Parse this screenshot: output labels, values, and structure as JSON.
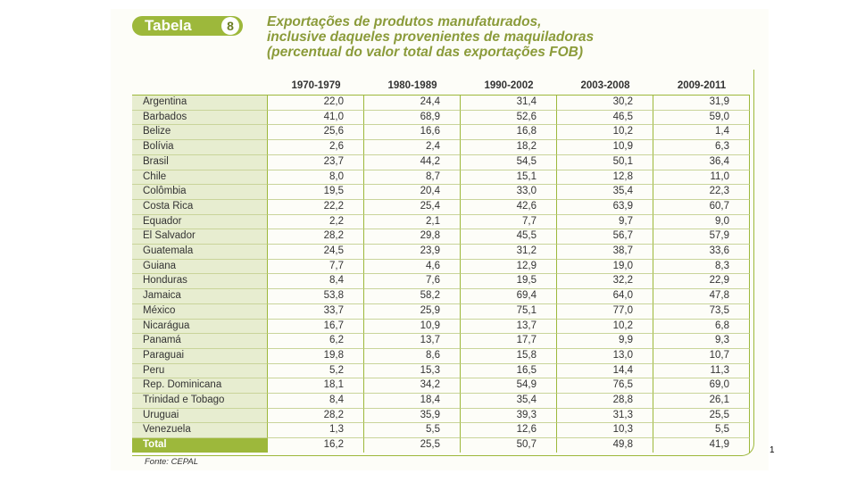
{
  "badge": {
    "label": "Tabela",
    "number": "8"
  },
  "title": {
    "line1": "Exportações de produtos manufaturados,",
    "line2": "inclusive daqueles provenientes de maquiladoras",
    "line3": "(percentual  do valor total das exportações FOB)"
  },
  "table": {
    "headers": [
      "",
      "1970-1979",
      "1980-1989",
      "1990-2002",
      "2003-2008",
      "2009-2011"
    ],
    "rows": [
      [
        "Argentina",
        "22,0",
        "24,4",
        "31,4",
        "30,2",
        "31,9"
      ],
      [
        "Barbados",
        "41,0",
        "68,9",
        "52,6",
        "46,5",
        "59,0"
      ],
      [
        "Belize",
        "25,6",
        "16,6",
        "16,8",
        "10,2",
        "1,4"
      ],
      [
        "Bolívia",
        "2,6",
        "2,4",
        "18,2",
        "10,9",
        "6,3"
      ],
      [
        "Brasil",
        "23,7",
        "44,2",
        "54,5",
        "50,1",
        "36,4"
      ],
      [
        "Chile",
        "8,0",
        "8,7",
        "15,1",
        "12,8",
        "11,0"
      ],
      [
        "Colômbia",
        "19,5",
        "20,4",
        "33,0",
        "35,4",
        "22,3"
      ],
      [
        "Costa Rica",
        "22,2",
        "25,4",
        "42,6",
        "63,9",
        "60,7"
      ],
      [
        "Equador",
        "2,2",
        "2,1",
        "7,7",
        "9,7",
        "9,0"
      ],
      [
        "El Salvador",
        "28,2",
        "29,8",
        "45,5",
        "56,7",
        "57,9"
      ],
      [
        "Guatemala",
        "24,5",
        "23,9",
        "31,2",
        "38,7",
        "33,6"
      ],
      [
        "Guiana",
        "7,7",
        "4,6",
        "12,9",
        "19,0",
        "8,3"
      ],
      [
        "Honduras",
        "8,4",
        "7,6",
        "19,5",
        "32,2",
        "22,9"
      ],
      [
        "Jamaica",
        "53,8",
        "58,2",
        "69,4",
        "64,0",
        "47,8"
      ],
      [
        "México",
        "33,7",
        "25,9",
        "75,1",
        "77,0",
        "73,5"
      ],
      [
        "Nicarágua",
        "16,7",
        "10,9",
        "13,7",
        "10,2",
        "6,8"
      ],
      [
        "Panamá",
        "6,2",
        "13,7",
        "17,7",
        "9,9",
        "9,3"
      ],
      [
        "Paraguai",
        "19,8",
        "8,6",
        "15,8",
        "13,0",
        "10,7"
      ],
      [
        "Peru",
        "5,2",
        "15,3",
        "16,5",
        "14,4",
        "11,3"
      ],
      [
        "Rep. Dominicana",
        "18,1",
        "34,2",
        "54,9",
        "76,5",
        "69,0"
      ],
      [
        "Trinidad e Tobago",
        "8,4",
        "18,4",
        "35,4",
        "28,8",
        "26,1"
      ],
      [
        "Uruguai",
        "28,2",
        "35,9",
        "39,3",
        "31,3",
        "25,5"
      ],
      [
        "Venezuela",
        "1,3",
        "5,5",
        "12,6",
        "10,3",
        "5,5"
      ]
    ],
    "total": [
      "Total",
      "16,2",
      "25,5",
      "50,7",
      "49,8",
      "41,9"
    ]
  },
  "source": "Fonte: CEPAL",
  "page_number": "1",
  "colors": {
    "accent": "#9db83b",
    "title": "#8b9b3a",
    "row_label_bg": "#e7edd0"
  }
}
